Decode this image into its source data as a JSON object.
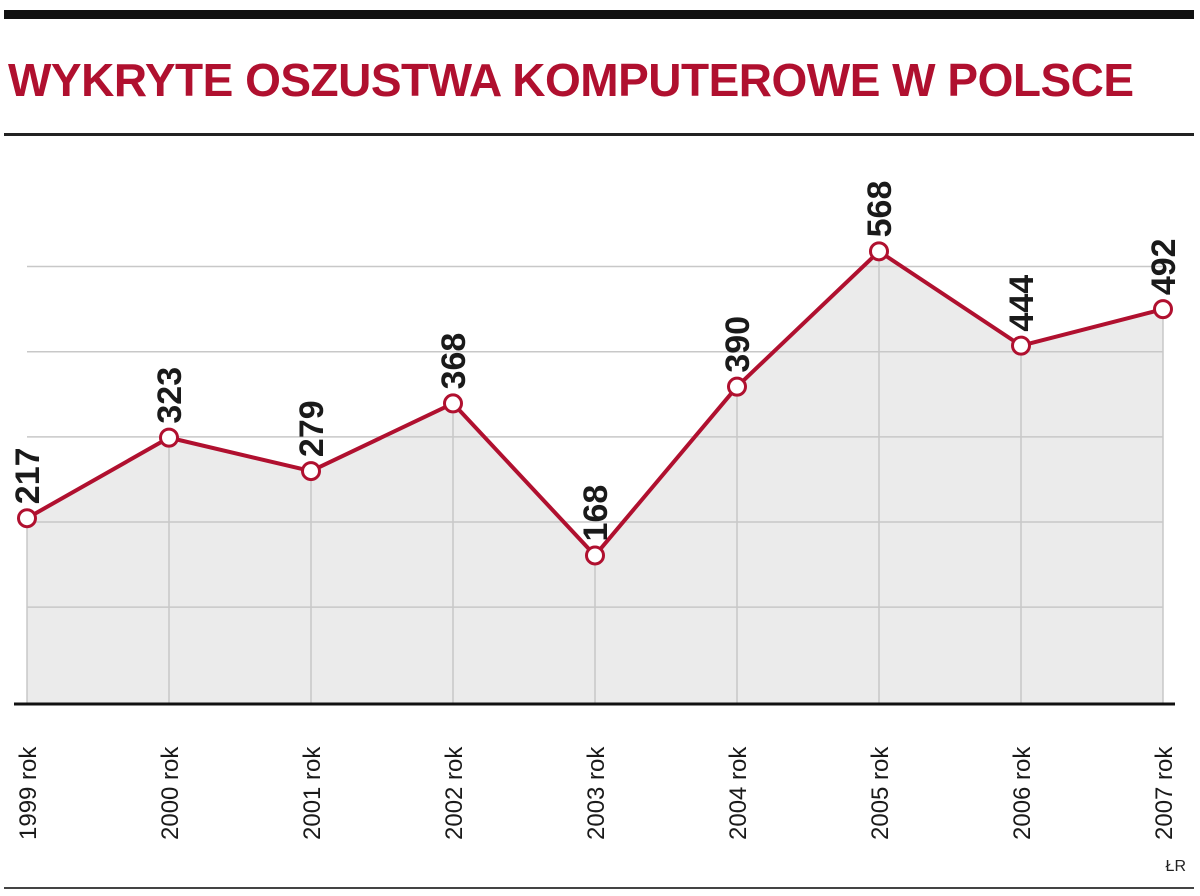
{
  "chart_data": {
    "type": "area",
    "title": "WYKRYTE OSZUSTWA KOMPUTEROWE W POLSCE",
    "categories": [
      "1999 rok",
      "2000 rok",
      "2001 rok",
      "2002 rok",
      "2003 rok",
      "2004 rok",
      "2005 rok",
      "2006 rok",
      "2007 rok"
    ],
    "values": [
      217,
      323,
      279,
      368,
      168,
      390,
      568,
      444,
      492
    ],
    "data_labels": [
      "217",
      "323",
      "279",
      "368",
      "168",
      "390",
      "568",
      "444",
      "492"
    ],
    "xlabel": "",
    "ylabel": "",
    "ylim": [
      -28,
      600
    ],
    "grid": true,
    "legend": "none",
    "source": "ŁR",
    "colors": {
      "line": "#b0102f",
      "area": "#ebebeb",
      "title": "#b0102f",
      "grid": "#c8c8c8"
    }
  }
}
